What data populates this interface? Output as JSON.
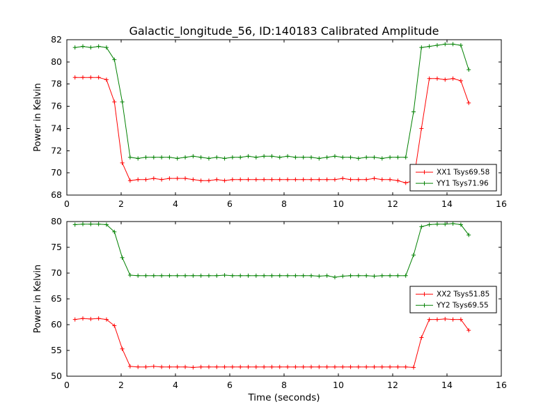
{
  "title": "Galactic_longitude_56, ID:140183 Calibrated Amplitude",
  "chart_data": [
    {
      "type": "line",
      "title": "Galactic_longitude_56, ID:140183 Calibrated Amplitude",
      "xlabel": "",
      "ylabel": "Power in Kelvin",
      "xlim": [
        0,
        16
      ],
      "ylim": [
        68,
        82
      ],
      "xticks": [
        0,
        2,
        4,
        6,
        8,
        10,
        12,
        14,
        16
      ],
      "yticks": [
        68,
        70,
        72,
        74,
        76,
        78,
        80,
        82
      ],
      "grid": false,
      "legend_position": "lower right",
      "x": [
        0.3,
        0.59,
        0.88,
        1.17,
        1.46,
        1.75,
        2.04,
        2.33,
        2.62,
        2.91,
        3.2,
        3.49,
        3.78,
        4.07,
        4.36,
        4.65,
        4.94,
        5.23,
        5.52,
        5.81,
        6.1,
        6.39,
        6.68,
        6.97,
        7.26,
        7.55,
        7.84,
        8.13,
        8.42,
        8.71,
        9.0,
        9.29,
        9.58,
        9.87,
        10.16,
        10.45,
        10.74,
        11.03,
        11.32,
        11.61,
        11.9,
        12.19,
        12.48,
        12.77,
        13.06,
        13.35,
        13.64,
        13.93,
        14.22,
        14.51,
        14.8
      ],
      "series": [
        {
          "name": "XX1 Tsys69.58",
          "tsys": 69.58,
          "color": "#ff0000",
          "marker": "+",
          "values": [
            78.6,
            78.6,
            78.6,
            78.6,
            78.4,
            76.4,
            70.9,
            69.3,
            69.4,
            69.4,
            69.5,
            69.4,
            69.5,
            69.5,
            69.5,
            69.4,
            69.3,
            69.3,
            69.4,
            69.3,
            69.4,
            69.4,
            69.4,
            69.4,
            69.4,
            69.4,
            69.4,
            69.4,
            69.4,
            69.4,
            69.4,
            69.4,
            69.4,
            69.4,
            69.5,
            69.4,
            69.4,
            69.4,
            69.5,
            69.4,
            69.4,
            69.3,
            69.1,
            69.3,
            74.0,
            78.5,
            78.5,
            78.4,
            78.5,
            78.3,
            76.3
          ]
        },
        {
          "name": "YY1 Tsys71.96",
          "tsys": 71.96,
          "color": "#008000",
          "marker": "+",
          "values": [
            81.3,
            81.4,
            81.3,
            81.4,
            81.3,
            80.2,
            76.4,
            71.4,
            71.3,
            71.4,
            71.4,
            71.4,
            71.4,
            71.3,
            71.4,
            71.5,
            71.4,
            71.3,
            71.4,
            71.3,
            71.4,
            71.4,
            71.5,
            71.4,
            71.5,
            71.5,
            71.4,
            71.5,
            71.4,
            71.4,
            71.4,
            71.3,
            71.4,
            71.5,
            71.4,
            71.4,
            71.3,
            71.4,
            71.4,
            71.3,
            71.4,
            71.4,
            71.4,
            75.5,
            81.3,
            81.4,
            81.5,
            81.6,
            81.6,
            81.5,
            79.3
          ]
        }
      ]
    },
    {
      "type": "line",
      "title": "",
      "xlabel": "Time (seconds)",
      "ylabel": "Power in Kelvin",
      "xlim": [
        0,
        16
      ],
      "ylim": [
        50,
        80
      ],
      "xticks": [
        0,
        2,
        4,
        6,
        8,
        10,
        12,
        14,
        16
      ],
      "yticks": [
        50,
        55,
        60,
        65,
        70,
        75,
        80
      ],
      "grid": false,
      "legend_position": "center right",
      "x": [
        0.3,
        0.59,
        0.88,
        1.17,
        1.46,
        1.75,
        2.04,
        2.33,
        2.62,
        2.91,
        3.2,
        3.49,
        3.78,
        4.07,
        4.36,
        4.65,
        4.94,
        5.23,
        5.52,
        5.81,
        6.1,
        6.39,
        6.68,
        6.97,
        7.26,
        7.55,
        7.84,
        8.13,
        8.42,
        8.71,
        9.0,
        9.29,
        9.58,
        9.87,
        10.16,
        10.45,
        10.74,
        11.03,
        11.32,
        11.61,
        11.9,
        12.19,
        12.48,
        12.77,
        13.06,
        13.35,
        13.64,
        13.93,
        14.22,
        14.51,
        14.8
      ],
      "series": [
        {
          "name": "XX2 Tsys51.85",
          "tsys": 51.85,
          "color": "#ff0000",
          "marker": "+",
          "values": [
            61.0,
            61.2,
            61.1,
            61.2,
            61.0,
            59.8,
            55.3,
            51.9,
            51.8,
            51.8,
            51.9,
            51.8,
            51.8,
            51.8,
            51.8,
            51.7,
            51.8,
            51.8,
            51.8,
            51.8,
            51.8,
            51.8,
            51.8,
            51.8,
            51.8,
            51.8,
            51.8,
            51.8,
            51.8,
            51.8,
            51.8,
            51.8,
            51.8,
            51.8,
            51.8,
            51.8,
            51.8,
            51.8,
            51.8,
            51.8,
            51.8,
            51.8,
            51.8,
            51.7,
            57.5,
            61.0,
            61.0,
            61.1,
            61.0,
            61.0,
            58.9
          ]
        },
        {
          "name": "YY2 Tsys69.55",
          "tsys": 69.55,
          "color": "#008000",
          "marker": "+",
          "values": [
            79.4,
            79.5,
            79.5,
            79.5,
            79.4,
            78.0,
            73.0,
            69.6,
            69.5,
            69.5,
            69.5,
            69.5,
            69.5,
            69.5,
            69.5,
            69.5,
            69.5,
            69.5,
            69.5,
            69.6,
            69.5,
            69.5,
            69.5,
            69.5,
            69.5,
            69.5,
            69.5,
            69.5,
            69.5,
            69.5,
            69.5,
            69.4,
            69.5,
            69.2,
            69.4,
            69.5,
            69.5,
            69.5,
            69.4,
            69.5,
            69.5,
            69.5,
            69.5,
            73.5,
            79.0,
            79.4,
            79.5,
            79.5,
            79.6,
            79.4,
            77.4
          ]
        }
      ]
    }
  ]
}
